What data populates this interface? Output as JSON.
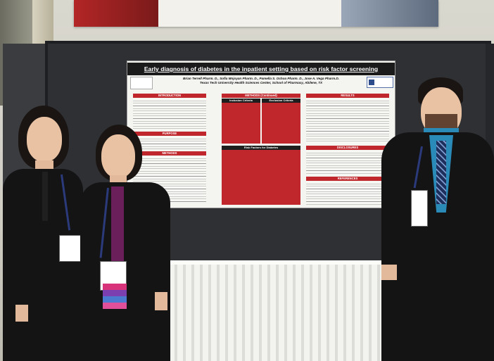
{
  "poster": {
    "title": "Early diagnosis of diabetes in the inpatient setting based on risk factor screening",
    "authors": "Brian Terrell Pharm. D., Sofia Mnjoyan Pharm. D., Pamella S. Ochoa Pharm. D., Jose A. Vega Pharm.D.",
    "institution": "Texas Tech University Health Sciences Center, School of Pharmacy, Abilene, TX",
    "sections": {
      "introduction": "INTRODUCTION",
      "purpose": "PURPOSE",
      "methods": "METHODS",
      "methods_continued": "METHODS (Continued)",
      "inclusion": "Inclusion Criteria",
      "exclusion": "Exclusion Criteria",
      "risk_factors": "Risk Factors for Diabetes",
      "results": "RESULTS",
      "disclosures": "DISCLOSURES",
      "references": "REFERENCES"
    }
  },
  "colors": {
    "poster_header": "#1b1b1b",
    "section_red": "#c0272d",
    "board": "#2e3034"
  }
}
